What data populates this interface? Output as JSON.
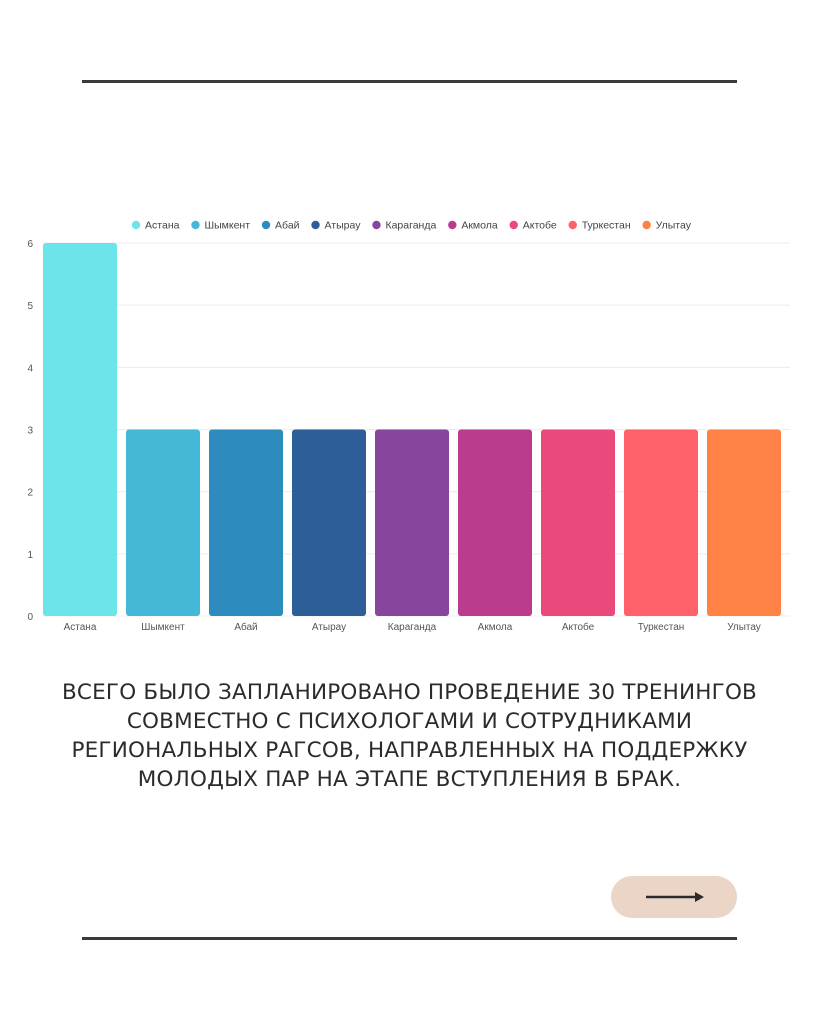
{
  "chart_data": {
    "type": "bar",
    "categories": [
      "Астана",
      "Шымкент",
      "Абай",
      "Атырау",
      "Караганда",
      "Акмола",
      "Актобе",
      "Туркестан",
      "Улытау"
    ],
    "values": [
      6,
      3,
      3,
      3,
      3,
      3,
      3,
      3,
      3
    ],
    "colors": [
      "#6ce5ea",
      "#44b8d7",
      "#2e8bbd",
      "#2d5e98",
      "#87459e",
      "#bb3c8c",
      "#ea4a7b",
      "#fe6169",
      "#fe8145"
    ],
    "ylim": [
      0,
      6
    ],
    "yticks": [
      0,
      1,
      2,
      3,
      4,
      5,
      6
    ],
    "legend_position": "top",
    "grid": true
  },
  "caption": {
    "lines": [
      "ВСЕГО БЫЛО ЗАПЛАНИРОВАНО ПРОВЕДЕНИЕ 30 ТРЕНИНГОВ",
      "СОВМЕСТНО С ПСИХОЛОГАМИ И СОТРУДНИКАМИ",
      "РЕГИОНАЛЬНЫХ РАГСОВ, НАПРАВЛЕННЫХ НА ПОДДЕРЖКУ",
      "МОЛОДЫХ ПАР НА ЭТАПЕ ВСТУПЛЕНИЯ В БРАК."
    ]
  },
  "next_button": {
    "icon": "arrow-right-icon",
    "color": "#ead5c6"
  }
}
